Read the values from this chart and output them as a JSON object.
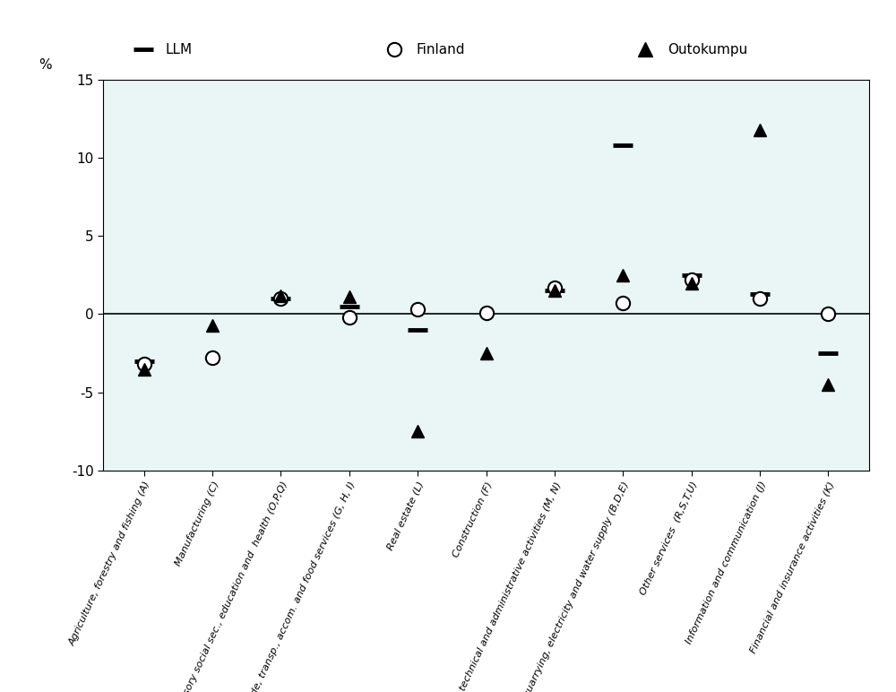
{
  "categories": [
    "Agriculture, forestry and fishing (A)",
    "Manufacturing (C)",
    "Public admin. & defence, compulsory social sec., education and  health (O,P,Q)",
    "Wholesale and retail trade, transp., accom. and food services (G, H, I)",
    "Real estate (L)",
    "Construction (F)",
    "Professional, scientific, technical and administrative activities (M, N)",
    "Mining and quarrying, electricity and water supply (B,D,E)",
    "Other services  (R,S,T,U)",
    "Information and communication (J)",
    "Financial and insurance activities (K)"
  ],
  "llm": [
    -3.0,
    null,
    1.0,
    0.5,
    -1.0,
    null,
    1.5,
    10.8,
    2.5,
    1.3,
    -2.5
  ],
  "finland": [
    -3.2,
    -2.8,
    1.0,
    -0.2,
    0.3,
    0.1,
    1.7,
    0.7,
    2.2,
    1.0,
    0.0
  ],
  "outokumpu": [
    -3.5,
    -0.7,
    1.2,
    1.1,
    -7.5,
    -2.5,
    1.5,
    2.5,
    2.0,
    11.8,
    -4.5
  ],
  "ylim": [
    -10,
    15
  ],
  "yticks": [
    -10,
    -5,
    0,
    5,
    10,
    15
  ],
  "ylabel": "%",
  "bg_color": "#eaf6f6",
  "legend_bg": "#e0e0e0",
  "legend_labels": [
    "LLM",
    "Finland",
    "Outokumpu"
  ]
}
